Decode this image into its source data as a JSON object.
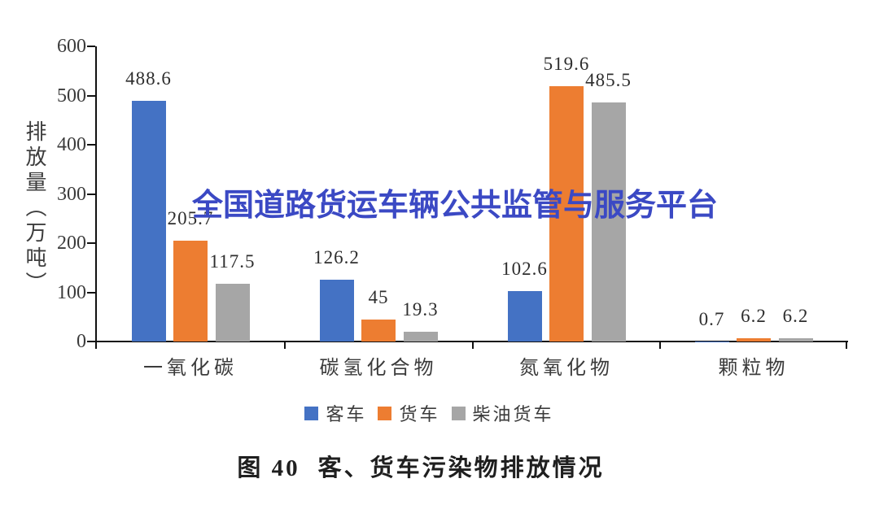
{
  "chart_data": {
    "type": "bar",
    "title": "",
    "categories": [
      "一氧化碳",
      "碳氢化合物",
      "氮氧化物",
      "颗粒物"
    ],
    "series": [
      {
        "name": "客车",
        "color": "#4472C4",
        "values": [
          488.6,
          126.2,
          102.6,
          0.7
        ]
      },
      {
        "name": "货车",
        "color": "#ED7D31",
        "values": [
          205.7,
          45,
          519.6,
          6.2
        ]
      },
      {
        "name": "柴油货车",
        "color": "#A6A6A6",
        "values": [
          117.5,
          19.3,
          485.5,
          6.2
        ]
      }
    ],
    "data_labels": [
      [
        "488.6",
        "126.2",
        "102.6",
        "0.7"
      ],
      [
        "205.7",
        "45",
        "519.6",
        "6.2"
      ],
      [
        "117.5",
        "19.3",
        "485.5",
        "6.2"
      ]
    ],
    "ylabel": "排放量（万吨）",
    "yticks": [
      0,
      100,
      200,
      300,
      400,
      500,
      600
    ],
    "ylim": [
      0,
      600
    ],
    "grid": false,
    "legend_position": "bottom"
  },
  "watermark": {
    "text": "全国道路货运车辆公共监管与服务平台",
    "color": "#3B49C4"
  },
  "caption": {
    "fig_label": "图 40",
    "title": "客、货车污染物排放情况"
  },
  "colors": {
    "axis": "#111111",
    "tick_text": "#3b3b3b",
    "data_label_text": "#2e2e2e",
    "background": "#ffffff"
  }
}
